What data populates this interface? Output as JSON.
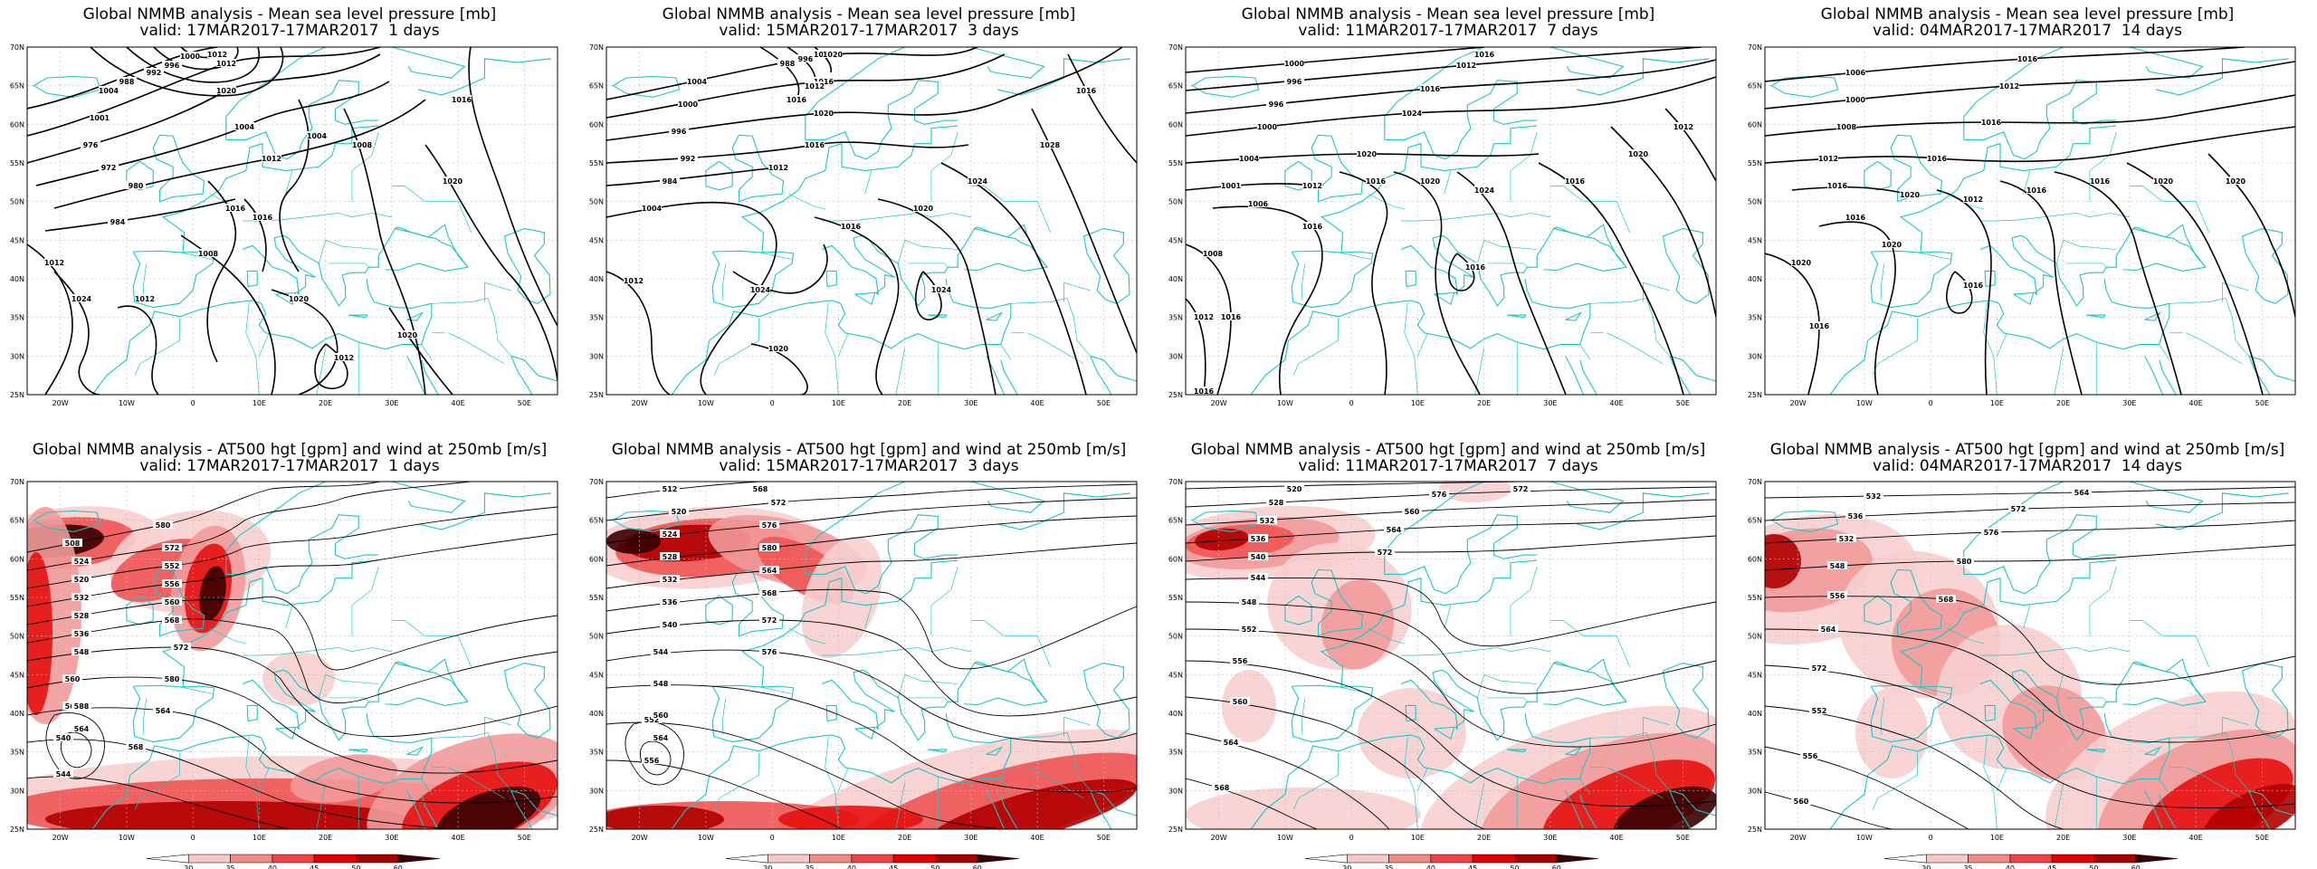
{
  "panels": [
    {
      "title": "Global NMMB analysis - Mean sea level pressure [mb]",
      "subtitle": "valid: 17MAR2017-17MAR2017  1 days"
    },
    {
      "title": "Global NMMB analysis - Mean sea level pressure [mb]",
      "subtitle": "valid: 15MAR2017-17MAR2017  3 days"
    },
    {
      "title": "Global NMMB analysis - Mean sea level pressure [mb]",
      "subtitle": "valid: 11MAR2017-17MAR2017  7 days"
    },
    {
      "title": "Global NMMB analysis - Mean sea level pressure [mb]",
      "subtitle": "valid: 04MAR2017-17MAR2017  14 days"
    },
    {
      "title": "Global NMMB analysis - AT500 hgt [gpm] and wind at 250mb [m/s]",
      "subtitle": "valid: 17MAR2017-17MAR2017  1 days"
    },
    {
      "title": "Global NMMB analysis - AT500 hgt [gpm] and wind at 250mb [m/s]",
      "subtitle": "valid: 15MAR2017-17MAR2017  3 days"
    },
    {
      "title": "Global NMMB analysis - AT500 hgt [gpm] and wind at 250mb [m/s]",
      "subtitle": "valid: 11MAR2017-17MAR2017  7 days"
    },
    {
      "title": "Global NMMB analysis - AT500 hgt [gpm] and wind at 250mb [m/s]",
      "subtitle": "valid: 04MAR2017-17MAR2017  14 days"
    }
  ],
  "axes": {
    "lat_labels": [
      "70N",
      "65N",
      "60N",
      "55N",
      "50N",
      "45N",
      "40N",
      "35N",
      "30N",
      "25N"
    ],
    "lon_labels": [
      "20W",
      "10W",
      "0",
      "10E",
      "20E",
      "30E",
      "40E",
      "50E"
    ]
  },
  "colorbar": {
    "labels": [
      "30",
      "35",
      "40",
      "45",
      "50",
      "60"
    ],
    "colors": [
      "#ffffff",
      "#f6c8c8",
      "#f08a8a",
      "#ee4444",
      "#e00000",
      "#a00000",
      "#3a0000"
    ]
  },
  "mslp_labels": [
    [
      "1004",
      "1001",
      "976",
      "972",
      "980",
      "984",
      "988",
      "992",
      "996",
      "1000",
      "1004",
      "1008",
      "1016",
      "1020",
      "1024",
      "1012",
      "1020",
      "1012",
      "1020",
      "1016",
      "1016",
      "1008",
      "1012",
      "1012",
      "1012",
      "1020",
      "1004",
      "1012"
    ],
    [
      "1004",
      "1000",
      "996",
      "992",
      "984",
      "988",
      "996",
      "1000",
      "1004",
      "1012",
      "1016",
      "1020",
      "1024",
      "1028",
      "1016",
      "1024",
      "1020",
      "1024",
      "1020",
      "1016",
      "1020",
      "1016",
      "1012",
      "1016",
      "1012"
    ],
    [
      "1000",
      "996",
      "996",
      "1000",
      "1004",
      "1001",
      "1006",
      "1008",
      "1012",
      "1016",
      "1020",
      "1024",
      "1016",
      "1020",
      "1012",
      "1016",
      "1016",
      "1012",
      "1016",
      "1024",
      "1020",
      "1012",
      "1016",
      "1016",
      "1016"
    ],
    [
      "1006",
      "1000",
      "1008",
      "1012",
      "1016",
      "1016",
      "1020",
      "1012",
      "1016",
      "1016",
      "1020",
      "1020",
      "1016",
      "1016",
      "1012",
      "1016",
      "1016",
      "1020",
      "1020",
      "1016"
    ]
  ],
  "hgt_labels": [
    [
      "508",
      "524",
      "520",
      "532",
      "528",
      "536",
      "548",
      "560",
      "568",
      "540",
      "544",
      "588",
      "564",
      "580",
      "572",
      "552",
      "556",
      "560",
      "568",
      "572",
      "580",
      "564",
      "568"
    ],
    [
      "512",
      "520",
      "524",
      "528",
      "532",
      "536",
      "540",
      "544",
      "548",
      "552",
      "556",
      "560",
      "564",
      "568",
      "572",
      "576",
      "580",
      "564",
      "568",
      "572",
      "576"
    ],
    [
      "520",
      "528",
      "532",
      "536",
      "540",
      "544",
      "548",
      "552",
      "556",
      "560",
      "564",
      "568",
      "572",
      "576",
      "560",
      "564",
      "572"
    ],
    [
      "532",
      "536",
      "532",
      "548",
      "556",
      "564",
      "572",
      "552",
      "556",
      "560",
      "564",
      "572",
      "576",
      "580",
      "568"
    ]
  ]
}
